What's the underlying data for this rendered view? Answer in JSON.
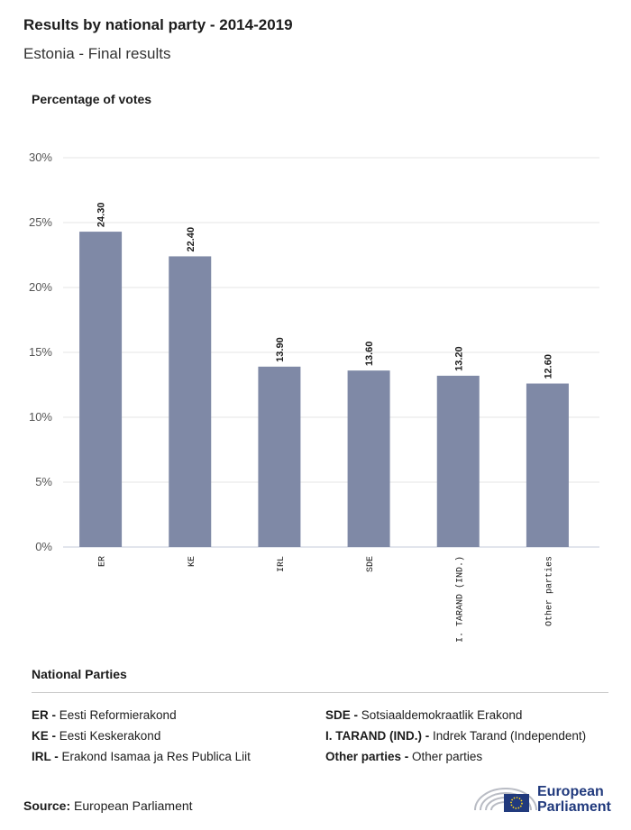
{
  "header": {
    "title": "Results by national party - 2014-2019",
    "subtitle": "Estonia - Final results"
  },
  "chart_data": {
    "type": "bar",
    "ylabel": "Percentage of votes",
    "categories": [
      "ER",
      "KE",
      "IRL",
      "SDE",
      "I. TARAND (IND.)",
      "Other parties"
    ],
    "values": [
      24.3,
      22.4,
      13.9,
      13.6,
      13.2,
      12.6
    ],
    "value_labels": [
      "24.30",
      "22.40",
      "13.90",
      "13.60",
      "13.20",
      "12.60"
    ],
    "ylim": [
      0,
      30
    ],
    "yticks": [
      "0%",
      "5%",
      "10%",
      "15%",
      "20%",
      "25%",
      "30%"
    ],
    "grid": true,
    "bar_color": "#7f89a6"
  },
  "legend": {
    "title": "National Parties",
    "items": [
      {
        "abbr": "ER -",
        "name": "Eesti Reformierakond"
      },
      {
        "abbr": "SDE -",
        "name": "Sotsiaaldemokraatlik Erakond"
      },
      {
        "abbr": "KE -",
        "name": "Eesti Keskerakond"
      },
      {
        "abbr": "I. TARAND (IND.) -",
        "name": "Indrek Tarand (Independent)"
      },
      {
        "abbr": "IRL -",
        "name": "Erakond Isamaa ja Res Publica Liit"
      },
      {
        "abbr": "Other parties -",
        "name": "Other parties"
      }
    ]
  },
  "footer": {
    "source_label": "Source:",
    "source_value": "European Parliament",
    "logo_line1": "European",
    "logo_line2": "Parliament",
    "logo_icon": "european-parliament-logo"
  }
}
